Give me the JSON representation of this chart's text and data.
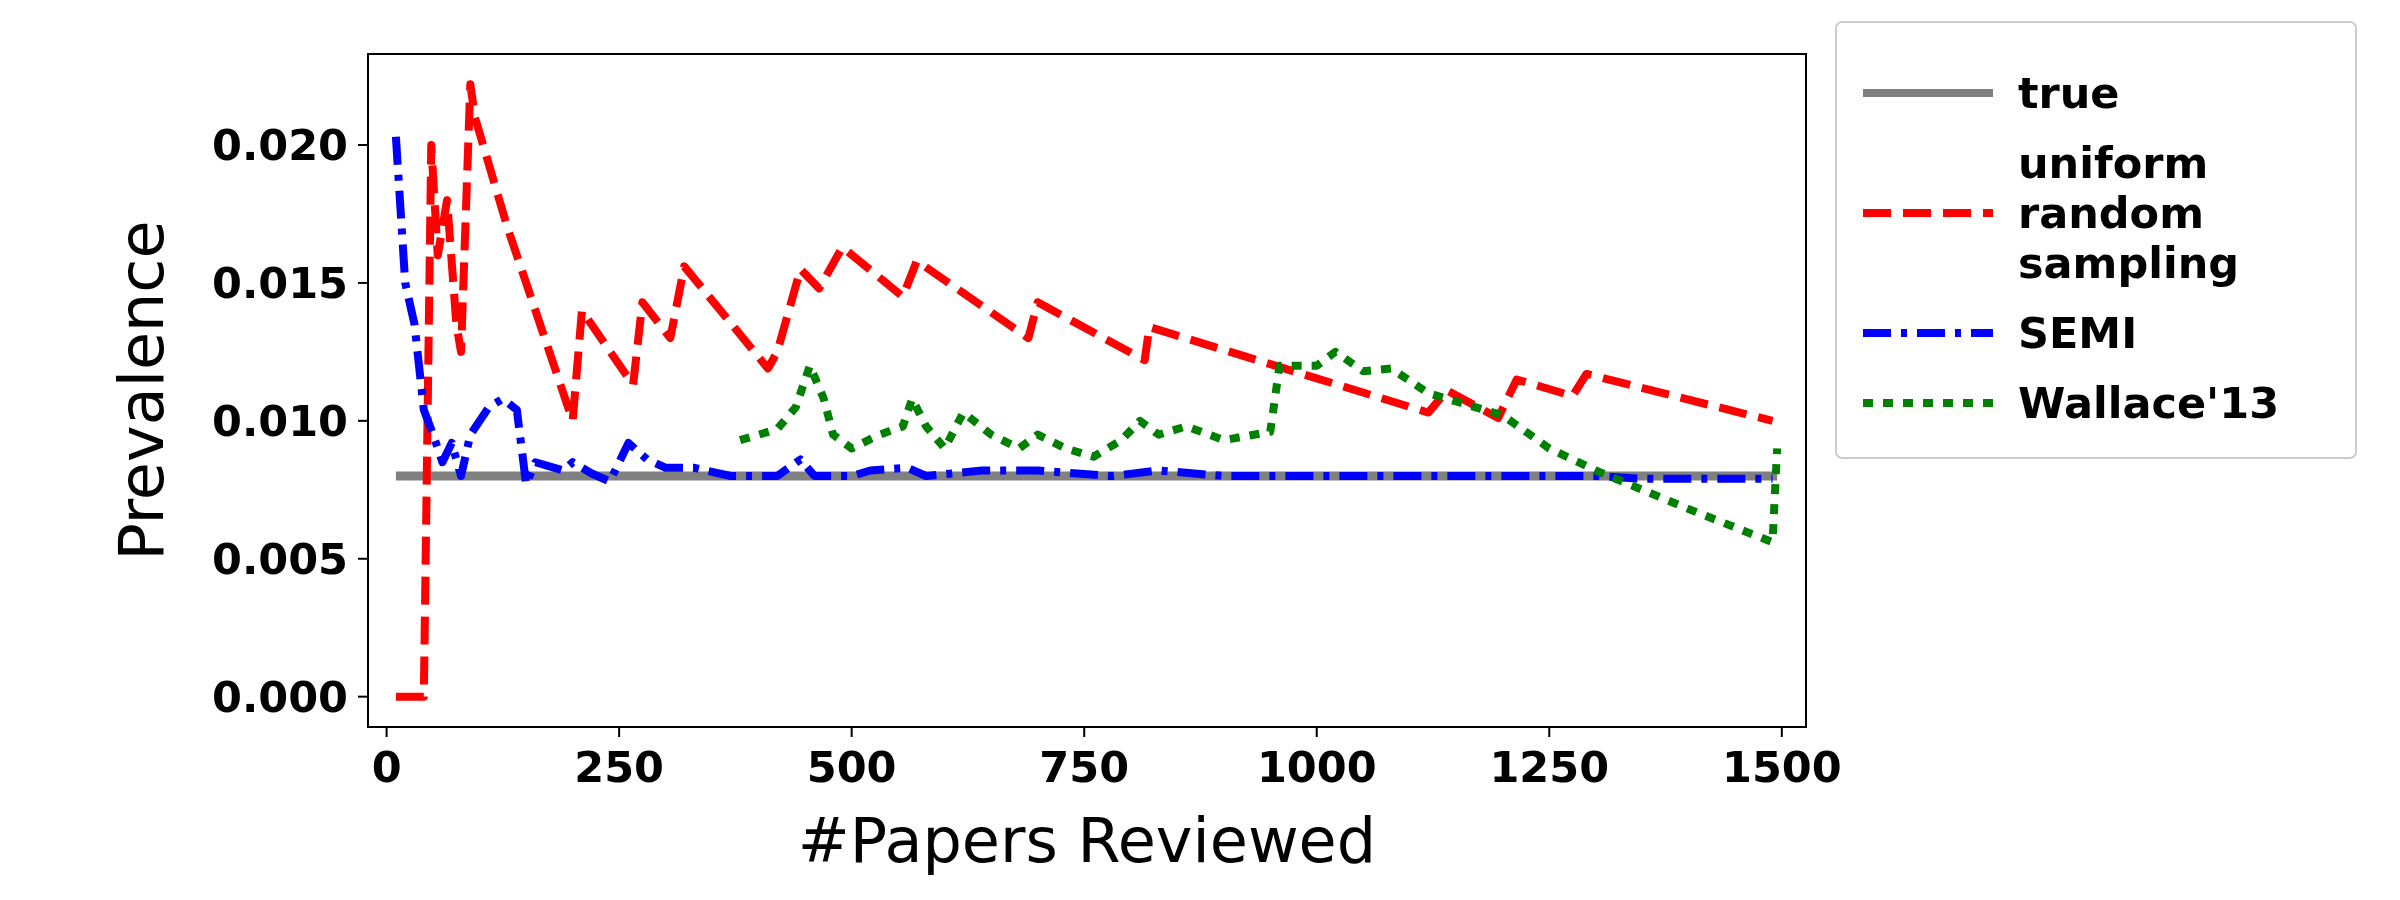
{
  "chart_data": {
    "type": "line",
    "xlabel": "#Papers Reviewed",
    "ylabel": "Prevalence",
    "xlim": [
      -20,
      1526
    ],
    "ylim": [
      -0.0011,
      0.0233
    ],
    "xticks": [
      0,
      250,
      500,
      750,
      1000,
      1250,
      1500
    ],
    "yticks": [
      {
        "value": 0,
        "label": "0.000"
      },
      {
        "value": 0.005,
        "label": "0.005"
      },
      {
        "value": 0.01,
        "label": "0.010"
      },
      {
        "value": 0.015,
        "label": "0.015"
      },
      {
        "value": 0.02,
        "label": "0.020"
      }
    ],
    "grid": false,
    "legend": "right",
    "series": [
      {
        "name": "true",
        "color": "#808080",
        "line_style": "solid",
        "x": [
          10,
          1495
        ],
        "values": [
          0.008,
          0.008
        ]
      },
      {
        "name": "uniform random sampling",
        "color": "#ff0000",
        "line_style": "dashed",
        "x": [
          10,
          40,
          48,
          55,
          65,
          75,
          80,
          90,
          95,
          130,
          200,
          210,
          265,
          275,
          305,
          320,
          410,
          420,
          445,
          465,
          490,
          555,
          570,
          690,
          700,
          815,
          820,
          1120,
          1140,
          1195,
          1215,
          1275,
          1290,
          1490
        ],
        "values": [
          0,
          0,
          0.02,
          0.016,
          0.018,
          0.0135,
          0.0125,
          0.0222,
          0.021,
          0.017,
          0.01,
          0.014,
          0.0113,
          0.0143,
          0.013,
          0.0156,
          0.0119,
          0.0125,
          0.0155,
          0.0148,
          0.0163,
          0.0145,
          0.0158,
          0.013,
          0.0143,
          0.0122,
          0.0134,
          0.0103,
          0.0111,
          0.0101,
          0.0115,
          0.0109,
          0.0117,
          0.01
        ]
      },
      {
        "name": "SEMI",
        "color": "#0000ff",
        "line_style": "dashdot",
        "x": [
          10,
          20,
          30,
          40,
          50,
          60,
          70,
          80,
          90,
          110,
          125,
          140,
          150,
          160,
          190,
          200,
          220,
          240,
          260,
          280,
          300,
          330,
          370,
          420,
          445,
          460,
          500,
          520,
          560,
          580,
          640,
          700,
          780,
          830,
          900,
          1000,
          1100,
          1200,
          1300,
          1350,
          1490
        ],
        "values": [
          0.0203,
          0.015,
          0.0135,
          0.0104,
          0.0095,
          0.0085,
          0.0092,
          0.008,
          0.0095,
          0.0105,
          0.0108,
          0.0104,
          0.0077,
          0.0085,
          0.0082,
          0.0085,
          0.0081,
          0.0078,
          0.0092,
          0.0086,
          0.0083,
          0.0083,
          0.008,
          0.008,
          0.0086,
          0.008,
          0.008,
          0.0082,
          0.0083,
          0.008,
          0.0082,
          0.0082,
          0.008,
          0.0082,
          0.008,
          0.008,
          0.008,
          0.008,
          0.008,
          0.0079,
          0.0079
        ]
      },
      {
        "name": "Wallace'13",
        "color": "#008000",
        "line_style": "dotted",
        "x": [
          380,
          420,
          440,
          455,
          470,
          480,
          500,
          530,
          555,
          565,
          580,
          600,
          620,
          650,
          680,
          700,
          730,
          760,
          790,
          810,
          830,
          860,
          900,
          950,
          960,
          1000,
          1020,
          1050,
          1080,
          1120,
          1150,
          1200,
          1250,
          1300,
          1350,
          1400,
          1490,
          1495
        ],
        "values": [
          0.0093,
          0.0097,
          0.0105,
          0.012,
          0.0108,
          0.0095,
          0.009,
          0.0095,
          0.0098,
          0.0108,
          0.0098,
          0.009,
          0.0103,
          0.0095,
          0.009,
          0.0095,
          0.009,
          0.0087,
          0.0093,
          0.01,
          0.0095,
          0.0098,
          0.0093,
          0.0096,
          0.012,
          0.012,
          0.0125,
          0.0118,
          0.0119,
          0.011,
          0.0107,
          0.0102,
          0.009,
          0.0082,
          0.0075,
          0.0068,
          0.0056,
          0.009
        ]
      }
    ]
  }
}
